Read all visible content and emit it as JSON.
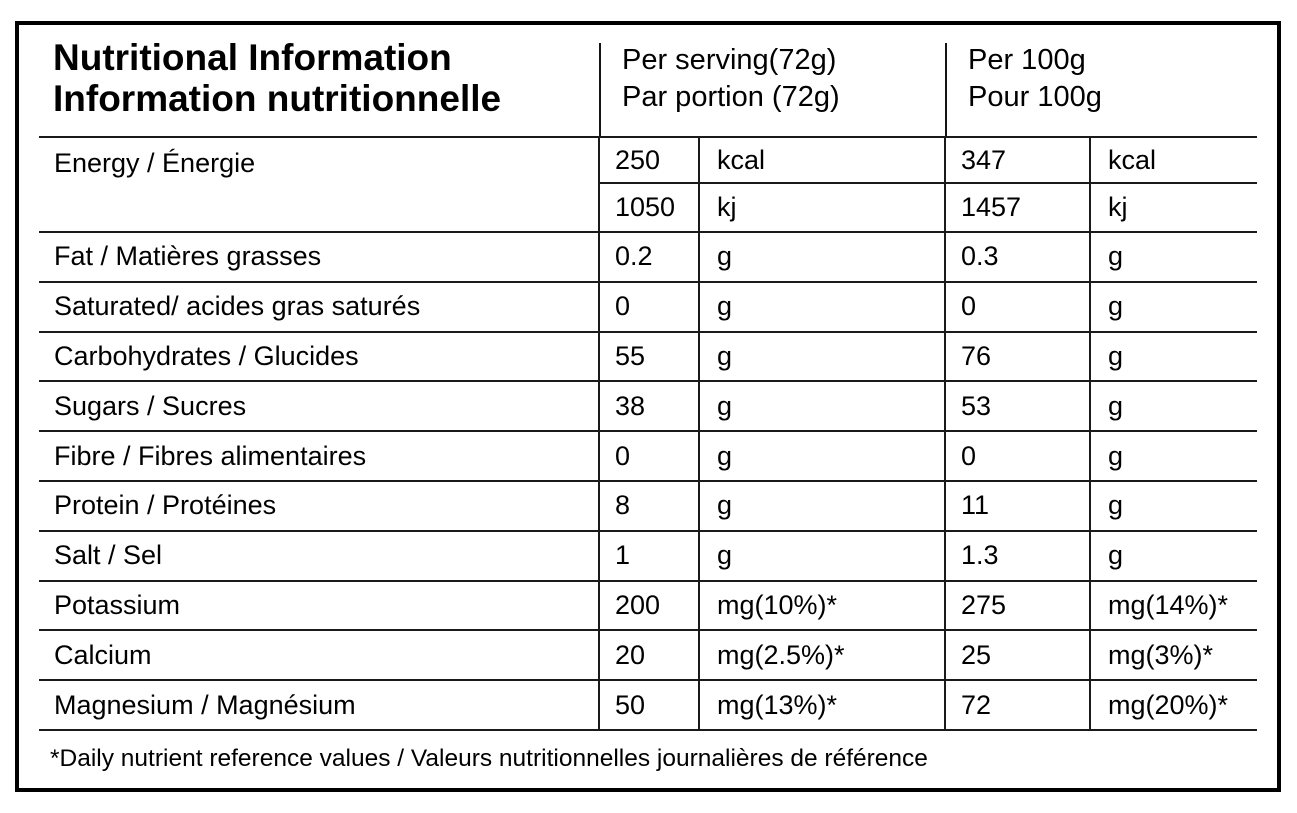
{
  "colors": {
    "background": "#ffffff",
    "outer_border": "#000000",
    "grid_line": "#1a1a1a",
    "text": "#000000"
  },
  "table": {
    "title_line1": "Nutritional Information",
    "title_line2": "Information nutritionnelle",
    "header_serving_line1": "Per serving(72g)",
    "header_serving_line2": "Par portion (72g)",
    "header_per100_line1": "Per 100g",
    "header_per100_line2": "Pour 100g",
    "energy": {
      "label": "Energy / Énergie",
      "sub_rows": [
        {
          "serving_value": "250",
          "serving_unit": "kcal",
          "per100_value": "347",
          "per100_unit": "kcal"
        },
        {
          "serving_value": "1050",
          "serving_unit": "kj",
          "per100_value": "1457",
          "per100_unit": "kj"
        }
      ]
    },
    "rows": [
      {
        "label": "Fat / Matières grasses",
        "serving_value": "0.2",
        "serving_unit": "g",
        "per100_value": "0.3",
        "per100_unit": "g"
      },
      {
        "label": "Saturated/ acides gras saturés",
        "serving_value": "0",
        "serving_unit": "g",
        "per100_value": "0",
        "per100_unit": "g"
      },
      {
        "label": "Carbohydrates / Glucides",
        "serving_value": "55",
        "serving_unit": "g",
        "per100_value": "76",
        "per100_unit": "g"
      },
      {
        "label": "Sugars / Sucres",
        "serving_value": "38",
        "serving_unit": "g",
        "per100_value": "53",
        "per100_unit": "g"
      },
      {
        "label": "Fibre / Fibres alimentaires",
        "serving_value": "0",
        "serving_unit": "g",
        "per100_value": "0",
        "per100_unit": "g"
      },
      {
        "label": "Protein / Protéines",
        "serving_value": "8",
        "serving_unit": "g",
        "per100_value": "11",
        "per100_unit": "g"
      },
      {
        "label": "Salt / Sel",
        "serving_value": "1",
        "serving_unit": "g",
        "per100_value": "1.3",
        "per100_unit": "g"
      },
      {
        "label": "Potassium",
        "serving_value": "200",
        "serving_unit": "mg(10%)*",
        "per100_value": "275",
        "per100_unit": "mg(14%)*"
      },
      {
        "label": "Calcium",
        "serving_value": "20",
        "serving_unit": "mg(2.5%)*",
        "per100_value": "25",
        "per100_unit": "mg(3%)*"
      },
      {
        "label": "Magnesium / Magnésium",
        "serving_value": "50",
        "serving_unit": "mg(13%)*",
        "per100_value": "72",
        "per100_unit": "mg(20%)*"
      }
    ],
    "footnote": "*Daily nutrient reference values / Valeurs nutritionnelles journalières de référence"
  }
}
